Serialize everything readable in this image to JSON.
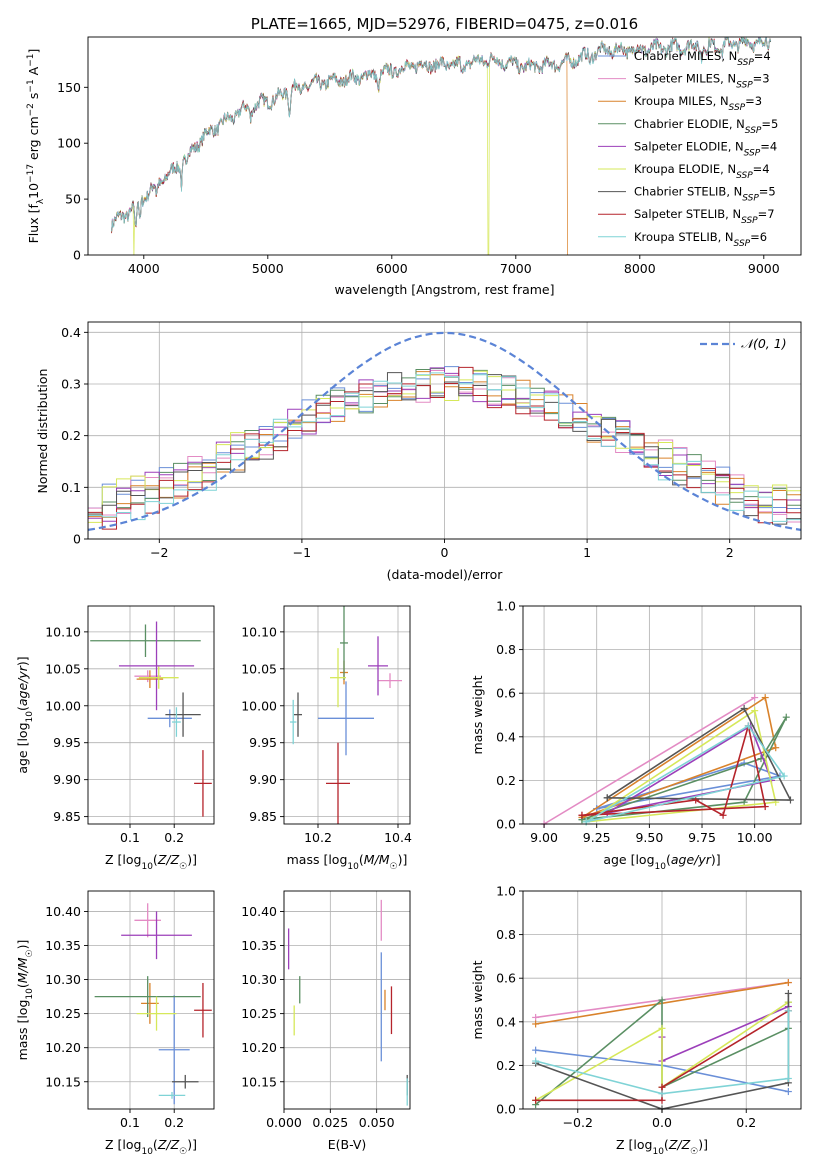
{
  "chart_data": [
    {
      "id": "spectrum",
      "type": "line",
      "title": "PLATE=1665, MJD=52976, FIBERID=0475, z=0.016",
      "xlabel": "wavelength [Angstrom, rest frame]",
      "ylabel": "Flux [f_λ10^-17 erg cm^-2 s^-1 A^-1]",
      "xlim": [
        3550,
        9300
      ],
      "ylim": [
        0,
        195
      ],
      "xticks": [
        4000,
        5000,
        6000,
        7000,
        8000,
        9000
      ],
      "yticks": [
        0,
        50,
        100,
        150
      ],
      "grid": false,
      "legend_position": "upper right",
      "series": [
        {
          "name": "Chabrier MILES, N_SSP=4",
          "color": "#6a8fd8"
        },
        {
          "name": "Salpeter MILES, N_SSP=3",
          "color": "#e38bc4"
        },
        {
          "name": "Kroupa MILES, N_SSP=3",
          "color": "#d9822b"
        },
        {
          "name": "Chabrier ELODIE, N_SSP=5",
          "color": "#5a8f63"
        },
        {
          "name": "Salpeter ELODIE, N_SSP=4",
          "color": "#9c3fba"
        },
        {
          "name": "Kroupa ELODIE, N_SSP=4",
          "color": "#d6e85a"
        },
        {
          "name": "Chabrier STELIB, N_SSP=5",
          "color": "#555555"
        },
        {
          "name": "Salpeter STELIB, N_SSP=7",
          "color": "#b5242b"
        },
        {
          "name": "Kroupa STELIB, N_SSP=6",
          "color": "#7fd3d6"
        }
      ],
      "continuum": {
        "x": [
          3740,
          3900,
          4000,
          4100,
          4300,
          4500,
          4800,
          5100,
          5200,
          5500,
          5900,
          6200,
          6500,
          6800,
          7100,
          7400,
          7700,
          8000,
          8300,
          8600,
          8900,
          9060
        ],
        "y": [
          28,
          40,
          52,
          62,
          82,
          108,
          130,
          142,
          150,
          155,
          162,
          170,
          170,
          175,
          168,
          172,
          183,
          184,
          186,
          188,
          190,
          190
        ]
      },
      "dropouts": [
        {
          "x": 3920,
          "color": "#d6e85a"
        },
        {
          "x": 6780,
          "color": "#d6e85a"
        },
        {
          "x": 7420,
          "color": "#d9822b"
        }
      ]
    },
    {
      "id": "residuals",
      "type": "histogram",
      "xlabel": "(data-model)/error",
      "ylabel": "Normed distribution",
      "xlim": [
        -2.5,
        2.5
      ],
      "ylim": [
        0,
        0.42
      ],
      "xticks": [
        -2,
        -1,
        0,
        1,
        2
      ],
      "yticks": [
        0.0,
        0.1,
        0.2,
        0.3,
        0.4
      ],
      "grid": true,
      "legend": [
        {
          "label": "𝒩(0, 1)",
          "color": "#5b84d6",
          "style": "dashed"
        }
      ],
      "reference_curve": "standard normal pdf"
    },
    {
      "id": "age-vs-Z",
      "type": "scatter",
      "xlabel": "Z [log10(Z/Z☉)]",
      "ylabel": "age [log10(age/yr)]",
      "xlim": [
        0.005,
        0.29
      ],
      "ylim": [
        9.84,
        10.135
      ],
      "xticks": [
        0.1,
        0.2
      ],
      "yticks": [
        9.85,
        9.9,
        9.95,
        10.0,
        10.05,
        10.1
      ],
      "grid": true,
      "points": [
        {
          "color": "#6a8fd8",
          "x": 0.19,
          "y": 9.983,
          "xerr": 0.05,
          "yerr": 0.012
        },
        {
          "color": "#e38bc4",
          "x": 0.14,
          "y": 10.04,
          "xerr": 0.03,
          "yerr": 0.008
        },
        {
          "color": "#d9822b",
          "x": 0.145,
          "y": 10.036,
          "xerr": 0.03,
          "yerr": 0.012
        },
        {
          "color": "#5a8f63",
          "x": 0.135,
          "y": 10.088,
          "xerr": 0.125,
          "yerr": 0.022
        },
        {
          "color": "#9c3fba",
          "x": 0.16,
          "y": 10.054,
          "xerr": 0.085,
          "yerr": 0.06
        },
        {
          "color": "#d6e85a",
          "x": 0.165,
          "y": 10.038,
          "xerr": 0.045,
          "yerr": 0.015
        },
        {
          "color": "#555555",
          "x": 0.22,
          "y": 9.988,
          "xerr": 0.04,
          "yerr": 0.03
        },
        {
          "color": "#b5242b",
          "x": 0.265,
          "y": 9.895,
          "xerr": 0.02,
          "yerr": 0.045
        },
        {
          "color": "#7fd3d6",
          "x": 0.205,
          "y": 9.978,
          "xerr": 0.01,
          "yerr": 0.02
        }
      ]
    },
    {
      "id": "age-vs-mass",
      "type": "scatter",
      "xlabel": "mass [log10(M/M☉)]",
      "ylim": [
        9.84,
        10.135
      ],
      "xlim": [
        10.115,
        10.43
      ],
      "xticks": [
        10.2,
        10.4
      ],
      "yticks": [
        9.85,
        9.9,
        9.95,
        10.0,
        10.05,
        10.1
      ],
      "grid": true,
      "points": [
        {
          "color": "#6a8fd8",
          "x": 10.27,
          "y": 9.983,
          "xerr": 0.07,
          "yerr": 0.05
        },
        {
          "color": "#e38bc4",
          "x": 10.38,
          "y": 10.034,
          "xerr": 0.03,
          "yerr": 0.01
        },
        {
          "color": "#d9822b",
          "x": 10.265,
          "y": 10.045,
          "xerr": 0.01,
          "yerr": 0.016
        },
        {
          "color": "#5a8f63",
          "x": 10.265,
          "y": 10.085,
          "xerr": 0.01,
          "yerr": 0.05
        },
        {
          "color": "#9c3fba",
          "x": 10.35,
          "y": 10.054,
          "xerr": 0.025,
          "yerr": 0.04
        },
        {
          "color": "#d6e85a",
          "x": 10.25,
          "y": 10.038,
          "xerr": 0.02,
          "yerr": 0.04
        },
        {
          "color": "#555555",
          "x": 10.15,
          "y": 9.988,
          "xerr": 0.01,
          "yerr": 0.03
        },
        {
          "color": "#b5242b",
          "x": 10.25,
          "y": 9.895,
          "xerr": 0.03,
          "yerr": 0.055
        },
        {
          "color": "#7fd3d6",
          "x": 10.138,
          "y": 9.978,
          "xerr": 0.008,
          "yerr": 0.03
        }
      ]
    },
    {
      "id": "mass-weight-vs-age",
      "type": "line",
      "xlabel": "age [log10(age/yr)]",
      "ylabel": "mass weight",
      "xlim": [
        8.9,
        10.22
      ],
      "ylim": [
        0,
        1.0
      ],
      "xticks": [
        9.0,
        9.25,
        9.5,
        9.75,
        10.0
      ],
      "yticks": [
        0.0,
        0.2,
        0.4,
        0.6,
        0.8,
        1.0
      ],
      "grid": true,
      "series": [
        {
          "color": "#6a8fd8",
          "x": [
            9.25,
            9.95,
            10.12,
            9.25
          ],
          "y": [
            0.07,
            0.28,
            0.22,
            0.07
          ]
        },
        {
          "color": "#e38bc4",
          "x": [
            9.0,
            10.0,
            9.0
          ],
          "y": [
            0.0,
            0.58,
            0.0
          ]
        },
        {
          "color": "#d9822b",
          "x": [
            9.18,
            10.05,
            10.1,
            9.18
          ],
          "y": [
            0.03,
            0.58,
            0.35,
            0.03
          ]
        },
        {
          "color": "#5a8f63",
          "x": [
            9.18,
            9.95,
            10.15,
            10.03,
            9.18
          ],
          "y": [
            0.02,
            0.1,
            0.49,
            0.3,
            0.02
          ]
        },
        {
          "color": "#9c3fba",
          "x": [
            9.3,
            9.98,
            10.08,
            9.3
          ],
          "y": [
            0.05,
            0.45,
            0.2,
            0.05
          ]
        },
        {
          "color": "#d6e85a",
          "x": [
            9.2,
            10.0,
            10.1,
            9.2
          ],
          "y": [
            0.01,
            0.52,
            0.1,
            0.01
          ]
        },
        {
          "color": "#555555",
          "x": [
            9.3,
            9.95,
            10.17,
            9.3
          ],
          "y": [
            0.12,
            0.53,
            0.11,
            0.12
          ]
        },
        {
          "color": "#b5242b",
          "x": [
            9.18,
            9.72,
            9.85,
            9.97,
            10.05,
            9.18
          ],
          "y": [
            0.04,
            0.11,
            0.04,
            0.45,
            0.08,
            0.04
          ]
        },
        {
          "color": "#7fd3d6",
          "x": [
            9.2,
            9.97,
            10.14,
            9.2
          ],
          "y": [
            0.01,
            0.45,
            0.22,
            0.01
          ]
        }
      ]
    },
    {
      "id": "mass-vs-Z",
      "type": "scatter",
      "xlabel": "Z [log10(Z/Z☉)]",
      "ylabel": "mass [log10(M/M☉)]",
      "xlim": [
        0.005,
        0.29
      ],
      "ylim": [
        10.11,
        10.43
      ],
      "xticks": [
        0.1,
        0.2
      ],
      "yticks": [
        10.15,
        10.2,
        10.25,
        10.3,
        10.35,
        10.4
      ],
      "grid": true,
      "points": [
        {
          "color": "#6a8fd8",
          "x": 0.2,
          "y": 10.197,
          "xerr": 0.035,
          "yerr": 0.08
        },
        {
          "color": "#e38bc4",
          "x": 0.14,
          "y": 10.387,
          "xerr": 0.03,
          "yerr": 0.025
        },
        {
          "color": "#d9822b",
          "x": 0.145,
          "y": 10.265,
          "xerr": 0.02,
          "yerr": 0.03
        },
        {
          "color": "#5a8f63",
          "x": 0.14,
          "y": 10.275,
          "xerr": 0.12,
          "yerr": 0.03
        },
        {
          "color": "#9c3fba",
          "x": 0.16,
          "y": 10.365,
          "xerr": 0.08,
          "yerr": 0.035
        },
        {
          "color": "#d6e85a",
          "x": 0.16,
          "y": 10.25,
          "xerr": 0.045,
          "yerr": 0.025
        },
        {
          "color": "#555555",
          "x": 0.225,
          "y": 10.15,
          "xerr": 0.03,
          "yerr": 0.01
        },
        {
          "color": "#b5242b",
          "x": 0.265,
          "y": 10.255,
          "xerr": 0.02,
          "yerr": 0.04
        },
        {
          "color": "#7fd3d6",
          "x": 0.195,
          "y": 10.13,
          "xerr": 0.03,
          "yerr": 0.005
        }
      ]
    },
    {
      "id": "mass-vs-ebv",
      "type": "scatter",
      "xlabel": "E(B-V)",
      "xlim": [
        0.0,
        0.068
      ],
      "ylim": [
        10.11,
        10.43
      ],
      "xticks": [
        0.0,
        0.025,
        0.05
      ],
      "xtick_labels": [
        "0.000",
        "0.025",
        "0.050"
      ],
      "yticks": [
        10.15,
        10.2,
        10.25,
        10.3,
        10.35,
        10.4
      ],
      "grid": true,
      "points": [
        {
          "color": "#6a8fd8",
          "x": 0.0525,
          "y": 10.26,
          "xerr": 0,
          "yerr": 0.08
        },
        {
          "color": "#e38bc4",
          "x": 0.0525,
          "y": 10.387,
          "xerr": 0,
          "yerr": 0.03
        },
        {
          "color": "#d9822b",
          "x": 0.0545,
          "y": 10.27,
          "xerr": 0,
          "yerr": 0.015
        },
        {
          "color": "#5a8f63",
          "x": 0.0085,
          "y": 10.285,
          "xerr": 0,
          "yerr": 0.02
        },
        {
          "color": "#9c3fba",
          "x": 0.0025,
          "y": 10.345,
          "xerr": 0,
          "yerr": 0.03
        },
        {
          "color": "#d6e85a",
          "x": 0.0055,
          "y": 10.24,
          "xerr": 0,
          "yerr": 0.022
        },
        {
          "color": "#555555",
          "x": 0.0665,
          "y": 10.145,
          "xerr": 0,
          "yerr": 0.015
        },
        {
          "color": "#b5242b",
          "x": 0.058,
          "y": 10.255,
          "xerr": 0,
          "yerr": 0.035
        },
        {
          "color": "#7fd3d6",
          "x": 0.0665,
          "y": 10.135,
          "xerr": 0,
          "yerr": 0.02
        }
      ]
    },
    {
      "id": "mass-weight-vs-Z",
      "type": "line",
      "xlabel": "Z [log10(Z/Z☉)]",
      "ylabel": "mass weight",
      "xlim": [
        -0.33,
        0.33
      ],
      "ylim": [
        0,
        1.0
      ],
      "xticks": [
        -0.2,
        0.0,
        0.2
      ],
      "xtick_labels": [
        "−0.2",
        "0.0",
        "0.2"
      ],
      "yticks": [
        0.0,
        0.2,
        0.4,
        0.6,
        0.8,
        1.0
      ],
      "grid": true,
      "series": [
        {
          "color": "#6a8fd8",
          "x": [
            -0.3,
            0.0,
            0.3
          ],
          "y": [
            0.27,
            0.2,
            0.08
          ]
        },
        {
          "color": "#e38bc4",
          "x": [
            -0.3,
            0.3
          ],
          "y": [
            0.42,
            0.58
          ]
        },
        {
          "color": "#d9822b",
          "x": [
            -0.3,
            0.3
          ],
          "y": [
            0.39,
            0.58
          ]
        },
        {
          "color": "#5a8f63",
          "x": [
            -0.3,
            0.0,
            0.0,
            0.3,
            0.3
          ],
          "y": [
            0.02,
            0.5,
            0.1,
            0.37,
            0.49
          ]
        },
        {
          "color": "#9c3fba",
          "x": [
            0.0,
            0.0,
            0.3
          ],
          "y": [
            0.33,
            0.22,
            0.47
          ]
        },
        {
          "color": "#d6e85a",
          "x": [
            -0.3,
            0.0,
            0.0,
            0.3
          ],
          "y": [
            0.04,
            0.37,
            0.1,
            0.49
          ]
        },
        {
          "color": "#555555",
          "x": [
            -0.3,
            0.0,
            0.3,
            0.3
          ],
          "y": [
            0.21,
            0.0,
            0.12,
            0.53
          ]
        },
        {
          "color": "#b5242b",
          "x": [
            -0.3,
            0.0,
            0.0,
            0.3
          ],
          "y": [
            0.04,
            0.04,
            0.1,
            0.45
          ]
        },
        {
          "color": "#7fd3d6",
          "x": [
            -0.3,
            0.0,
            0.3,
            0.3
          ],
          "y": [
            0.22,
            0.07,
            0.14,
            0.45
          ]
        }
      ]
    }
  ]
}
